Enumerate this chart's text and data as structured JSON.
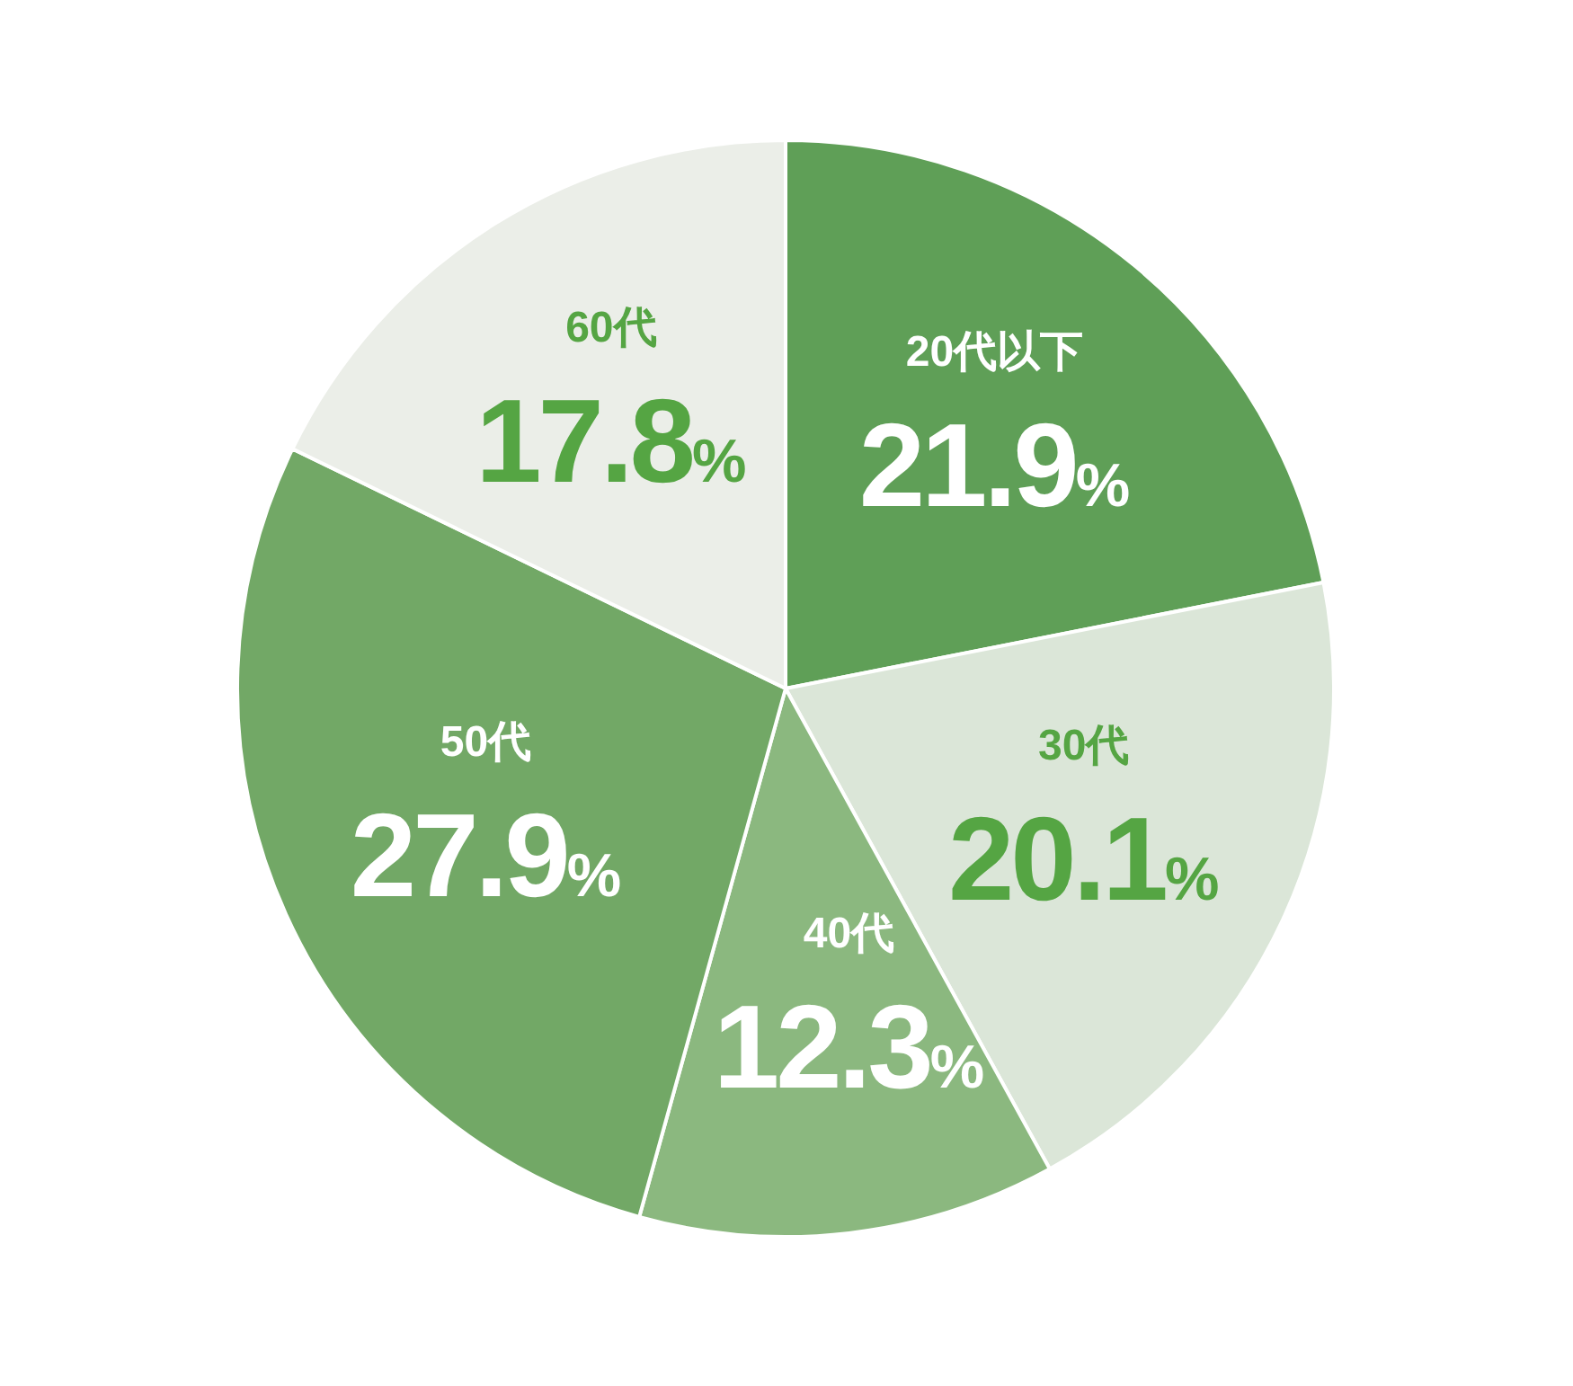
{
  "chart_data": {
    "type": "pie",
    "categories": [
      "20代以下",
      "30代",
      "40代",
      "50代",
      "60代"
    ],
    "values": [
      21.9,
      20.1,
      12.3,
      27.9,
      17.8
    ],
    "value_labels": [
      "21.9%",
      "20.1%",
      "12.3%",
      "27.9%",
      "17.8%"
    ],
    "colors": [
      "#5f9f57",
      "#dbe6d8",
      "#8bb87f",
      "#72a866",
      "#ebeee8"
    ]
  }
}
